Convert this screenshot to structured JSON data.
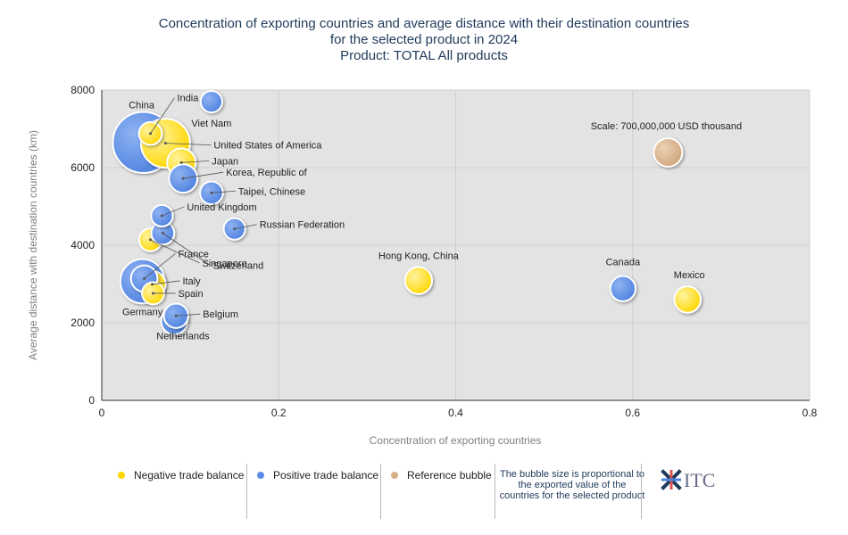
{
  "title": {
    "line1": "Concentration of exporting countries and average distance with their destination countries",
    "line2": "for the selected product in 2024",
    "line3": "Product: TOTAL All products"
  },
  "legend": {
    "negative": "Negative trade balance",
    "positive": "Positive trade balance",
    "reference": "Reference bubble",
    "note": "The bubble size is proportional to the exported value of the countries for the selected product",
    "logo": "ITC"
  },
  "colors": {
    "negative": "#ffd700",
    "positive": "#5b8ee6",
    "reference": "#d6b08a",
    "plot_bg": "#e3e3e3"
  },
  "chart_data": {
    "type": "scatter",
    "xlabel": "Concentration of exporting countries",
    "ylabel": "Average distance with destination countries (km)",
    "xlim": [
      0,
      0.8
    ],
    "ylim": [
      0,
      8000
    ],
    "x_ticks": [
      "0",
      "0.2",
      "0.4",
      "0.6",
      "0.8"
    ],
    "y_ticks": [
      "0",
      "2000",
      "4000",
      "6000",
      "8000"
    ],
    "grid": true,
    "legend_position": "bottom",
    "points": [
      {
        "label": "China",
        "x": 0.047,
        "y": 6650,
        "size": 3200000000,
        "balance": "positive"
      },
      {
        "label": "United States of America",
        "x": 0.072,
        "y": 6630,
        "size": 2060000000,
        "balance": "negative"
      },
      {
        "label": "Germany",
        "x": 0.046,
        "y": 3070,
        "size": 1680000000,
        "balance": "positive"
      },
      {
        "label": "India",
        "x": 0.055,
        "y": 6880,
        "size": 450000000,
        "balance": "negative"
      },
      {
        "label": "Viet Nam",
        "x": 0.124,
        "y": 7700,
        "size": 400000000,
        "balance": "positive"
      },
      {
        "label": "Japan",
        "x": 0.09,
        "y": 6130,
        "size": 700000000,
        "balance": "negative"
      },
      {
        "label": "Korea, Republic of",
        "x": 0.092,
        "y": 5720,
        "size": 690000000,
        "balance": "positive"
      },
      {
        "label": "Taipei, Chinese",
        "x": 0.124,
        "y": 5350,
        "size": 450000000,
        "balance": "positive"
      },
      {
        "label": "United Kingdom",
        "x": 0.068,
        "y": 4760,
        "size": 400000000,
        "balance": "positive"
      },
      {
        "label": "Singapore",
        "x": 0.055,
        "y": 4140,
        "size": 450000000,
        "balance": "negative"
      },
      {
        "label": "Switzerland",
        "x": 0.069,
        "y": 4310,
        "size": 450000000,
        "balance": "positive"
      },
      {
        "label": "Russian Federation",
        "x": 0.15,
        "y": 4420,
        "size": 400000000,
        "balance": "positive"
      },
      {
        "label": "France",
        "x": 0.048,
        "y": 3140,
        "size": 600000000,
        "balance": "positive"
      },
      {
        "label": "Italy",
        "x": 0.057,
        "y": 2990,
        "size": 620000000,
        "balance": "negative"
      },
      {
        "label": "Spain",
        "x": 0.058,
        "y": 2760,
        "size": 420000000,
        "balance": "negative"
      },
      {
        "label": "Belgium",
        "x": 0.084,
        "y": 2180,
        "size": 510000000,
        "balance": "positive"
      },
      {
        "label": "Netherlands",
        "x": 0.082,
        "y": 2040,
        "size": 600000000,
        "balance": "positive"
      },
      {
        "label": "Hong Kong, China",
        "x": 0.358,
        "y": 3090,
        "size": 630000000,
        "balance": "negative"
      },
      {
        "label": "Canada",
        "x": 0.589,
        "y": 2880,
        "size": 550000000,
        "balance": "positive"
      },
      {
        "label": "Mexico",
        "x": 0.662,
        "y": 2600,
        "size": 600000000,
        "balance": "negative"
      },
      {
        "label": "Scale: 700,000,000 USD thousand",
        "x": 0.64,
        "y": 6390,
        "size": 700000000,
        "balance": "reference"
      }
    ]
  }
}
